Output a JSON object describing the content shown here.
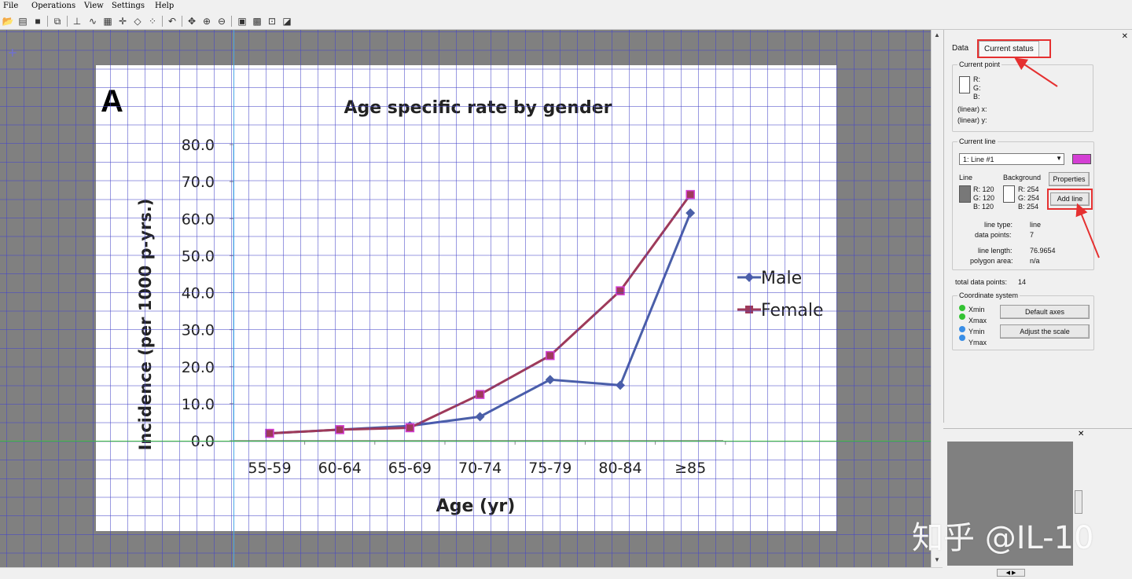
{
  "menu": [
    "File",
    "Operations",
    "View",
    "Settings",
    "Help"
  ],
  "toolbar_icons": [
    "open-icon",
    "new-icon",
    "save-icon",
    "copy-icon",
    "axes-icon",
    "curve-icon",
    "segment-icon",
    "point-icon",
    "eraser-icon",
    "measure-icon",
    "undo-icon",
    "pan-icon",
    "zoom-in-icon",
    "zoom-out-icon",
    "image-icon",
    "grid-icon",
    "points-icon",
    "chart-icon"
  ],
  "tabs": {
    "data": "Data",
    "current_status": "Current status"
  },
  "current_point": {
    "title": "Current point",
    "r": "R:",
    "g": "G:",
    "b": "B:",
    "x_label": "(linear)  x:",
    "y_label": "(linear)  y:"
  },
  "current_line": {
    "title": "Current line",
    "selected": "1: Line #1",
    "line_color": "#d43fd4",
    "line_label": "Line",
    "background_label": "Background",
    "line_rgb": [
      "R: 120",
      "G: 120",
      "B: 120"
    ],
    "bg_rgb": [
      "R: 254",
      "G: 254",
      "B: 254"
    ],
    "properties_btn": "Properties",
    "add_line_btn": "Add line",
    "line_type_label": "line type:",
    "line_type": "line",
    "data_points_label": "data points:",
    "data_points": "7",
    "line_length_label": "line length:",
    "line_length": "76.9654",
    "polygon_area_label": "polygon area:",
    "polygon_area": "n/a"
  },
  "total_points": {
    "label": "total data points:",
    "value": "14"
  },
  "coordinate_system": {
    "title": "Coordinate system",
    "axes": [
      "Xmin",
      "Xmax",
      "Ymin",
      "Ymax"
    ],
    "axis_colors": [
      "#33c233",
      "#33c233",
      "#3a8ee6",
      "#3a8ee6"
    ],
    "default_axes_btn": "Default axes",
    "adjust_scale_btn": "Adjust the scale"
  },
  "watermark": "知乎 @IL-10",
  "chart_data": {
    "type": "line",
    "panel_label": "A",
    "title": "Age specific rate by gender",
    "xlabel": "Age (yr)",
    "ylabel": "Incidence (per 1000 p-yrs.)",
    "categories": [
      "55-59",
      "60-64",
      "65-69",
      "70-74",
      "75-79",
      "80-84",
      "≥85"
    ],
    "yticks": [
      "0.0",
      "10.0",
      "20.0",
      "30.0",
      "40.0",
      "50.0",
      "60.0",
      "70.0",
      "80.0"
    ],
    "ylim": [
      0,
      80
    ],
    "legend_position": "right",
    "series": [
      {
        "name": "Male",
        "color": "#4a5fa8",
        "marker": "diamond",
        "values": [
          2.0,
          3.0,
          4.0,
          6.5,
          16.5,
          15.0,
          61.5
        ]
      },
      {
        "name": "Female",
        "color": "#9e3a5a",
        "marker": "square",
        "values": [
          2.0,
          3.0,
          3.5,
          12.5,
          23.0,
          40.5,
          66.5
        ]
      }
    ]
  }
}
